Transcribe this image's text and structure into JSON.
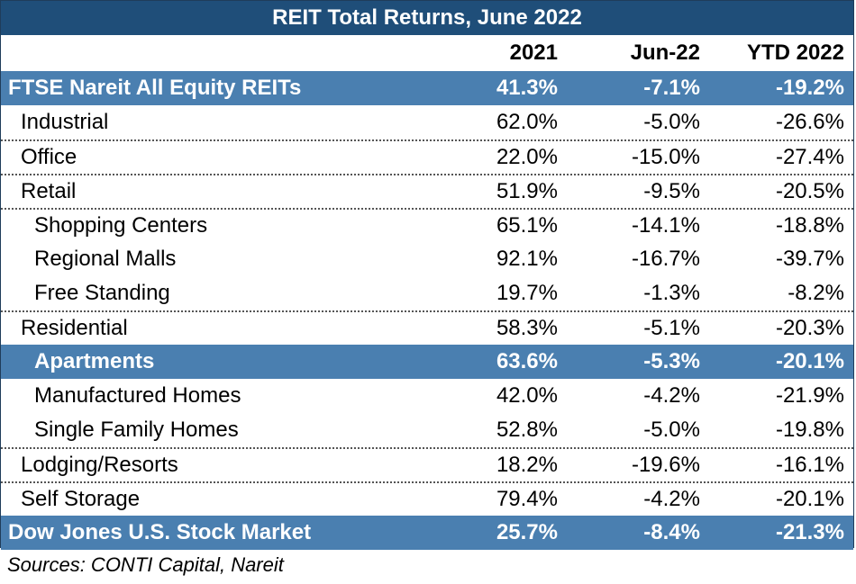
{
  "title": "REIT Total Returns, June 2022",
  "columns": [
    "2021",
    "Jun-22",
    "YTD 2022"
  ],
  "rows": [
    {
      "label": "FTSE Nareit All Equity REITs",
      "v2021": "41.3%",
      "vjun": "-7.1%",
      "vytd": "-19.2%"
    },
    {
      "label": "Industrial",
      "v2021": "62.0%",
      "vjun": "-5.0%",
      "vytd": "-26.6%"
    },
    {
      "label": "Office",
      "v2021": "22.0%",
      "vjun": "-15.0%",
      "vytd": "-27.4%"
    },
    {
      "label": "Retail",
      "v2021": "51.9%",
      "vjun": "-9.5%",
      "vytd": "-20.5%"
    },
    {
      "label": "Shopping Centers",
      "v2021": "65.1%",
      "vjun": "-14.1%",
      "vytd": "-18.8%"
    },
    {
      "label": "Regional Malls",
      "v2021": "92.1%",
      "vjun": "-16.7%",
      "vytd": "-39.7%"
    },
    {
      "label": "Free Standing",
      "v2021": "19.7%",
      "vjun": "-1.3%",
      "vytd": "-8.2%"
    },
    {
      "label": "Residential",
      "v2021": "58.3%",
      "vjun": "-5.1%",
      "vytd": "-20.3%"
    },
    {
      "label": "Apartments",
      "v2021": "63.6%",
      "vjun": "-5.3%",
      "vytd": "-20.1%"
    },
    {
      "label": "Manufactured Homes",
      "v2021": "42.0%",
      "vjun": "-4.2%",
      "vytd": "-21.9%"
    },
    {
      "label": "Single Family Homes",
      "v2021": "52.8%",
      "vjun": "-5.0%",
      "vytd": "-19.8%"
    },
    {
      "label": "Lodging/Resorts",
      "v2021": "18.2%",
      "vjun": "-19.6%",
      "vytd": "-16.1%"
    },
    {
      "label": "Self Storage",
      "v2021": "79.4%",
      "vjun": "-4.2%",
      "vytd": "-20.1%"
    },
    {
      "label": "Dow Jones U.S. Stock Market",
      "v2021": "25.7%",
      "vjun": "-8.4%",
      "vytd": "-21.3%"
    }
  ],
  "source": "Sources: CONTI Capital, Nareit",
  "colors": {
    "title_bg": "#1f4e79",
    "highlight_bg": "#4a7fb0"
  }
}
